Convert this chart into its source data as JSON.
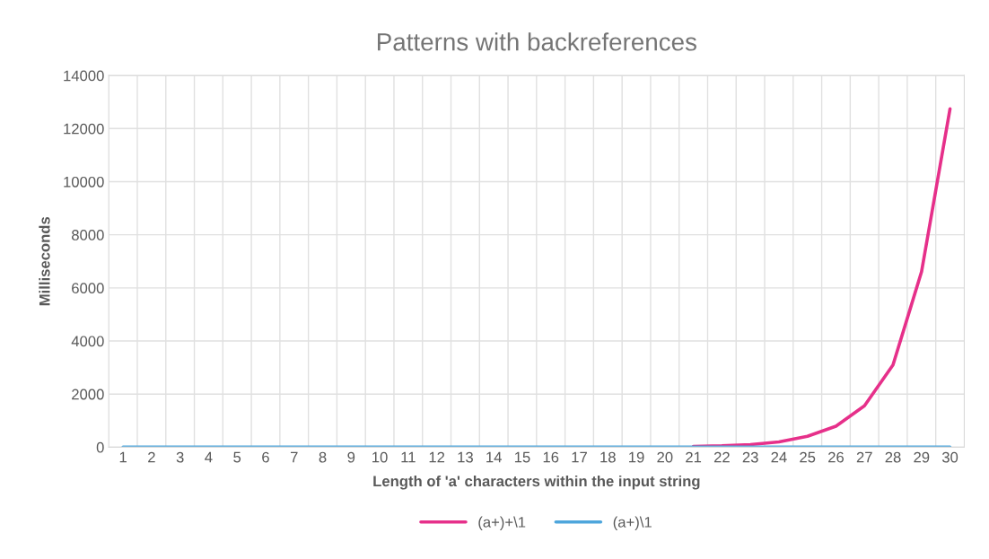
{
  "chart_data": {
    "type": "line",
    "title": "Patterns with backreferences",
    "xlabel": "Length of 'a' characters within the input string",
    "ylabel": "Milliseconds",
    "categories": [
      "1",
      "2",
      "3",
      "4",
      "5",
      "6",
      "7",
      "8",
      "9",
      "10",
      "11",
      "12",
      "13",
      "14",
      "15",
      "16",
      "17",
      "18",
      "19",
      "20",
      "21",
      "22",
      "23",
      "24",
      "25",
      "26",
      "27",
      "28",
      "29",
      "30"
    ],
    "series": [
      {
        "name": "(a+)+\\1",
        "color": "#e6308a",
        "values": [
          null,
          null,
          null,
          null,
          null,
          null,
          null,
          null,
          null,
          null,
          null,
          null,
          null,
          null,
          null,
          null,
          null,
          null,
          null,
          null,
          30,
          50,
          100,
          200,
          410,
          790,
          1560,
          3100,
          6600,
          12740
        ]
      },
      {
        "name": "(a+)\\1",
        "color": "#4ea6dc",
        "values": [
          0,
          0,
          0,
          0,
          0,
          0,
          0,
          0,
          0,
          0,
          0,
          0,
          0,
          0,
          0,
          0,
          0,
          0,
          0,
          0,
          0,
          0,
          0,
          0,
          0,
          0,
          0,
          0,
          0,
          0
        ]
      }
    ],
    "ylim": [
      0,
      14000
    ],
    "yticks": [
      0,
      2000,
      4000,
      6000,
      8000,
      10000,
      12000,
      14000
    ],
    "grid": true,
    "legend": "bottom",
    "marker": "none",
    "line_style": "solid"
  }
}
